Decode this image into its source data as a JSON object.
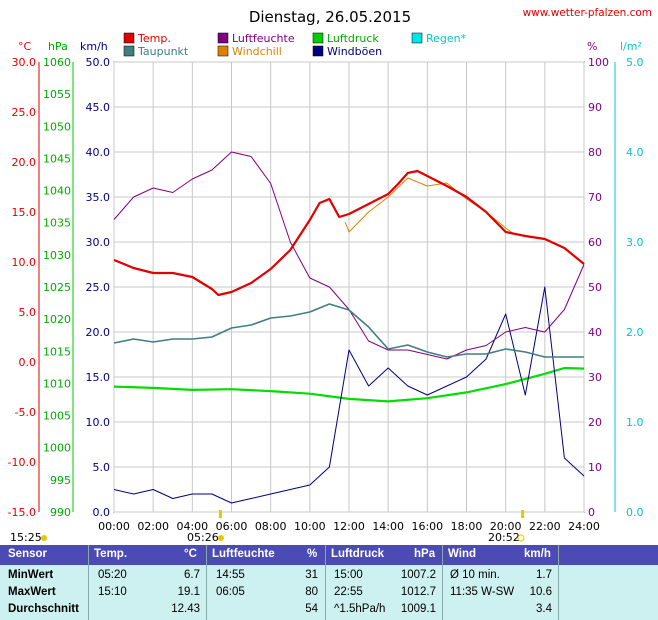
{
  "header": {
    "title": "Dienstag, 26.05.2015",
    "website": "www.wetter-pfalzen.com"
  },
  "legend": [
    {
      "label": "Temp.",
      "color": "#e00000"
    },
    {
      "label": "Luftfeuchte",
      "color": "#800080"
    },
    {
      "label": "Luftdruck",
      "color": "#00cc00"
    },
    {
      "label": "Regen*",
      "color": "#00e5e5"
    },
    {
      "label": "Taupunkt",
      "color": "#3f7f7f"
    },
    {
      "label": "Windchill",
      "color": "#e08000"
    },
    {
      "label": "Windböen",
      "color": "#00007f"
    }
  ],
  "axes": {
    "temp_unit": "°C",
    "press_unit": "hPa",
    "wind_unit": "km/h",
    "hum_unit": "%",
    "rain_unit": "l/m²",
    "temp_ticks": [
      "30.0",
      "25.0",
      "20.0",
      "15.0",
      "10.0",
      "5.0",
      "0.0",
      "-5.0",
      "-10.0",
      "-15.0"
    ],
    "press_ticks": [
      "1060",
      "1055",
      "1050",
      "1045",
      "1040",
      "1035",
      "1030",
      "1025",
      "1020",
      "1015",
      "1010",
      "1005",
      "1000",
      "995",
      "990"
    ],
    "wind_ticks": [
      "50.0",
      "45.0",
      "40.0",
      "35.0",
      "30.0",
      "25.0",
      "20.0",
      "15.0",
      "10.0",
      "5.0",
      "0.0"
    ],
    "hum_ticks": [
      "100",
      "90",
      "80",
      "70",
      "60",
      "50",
      "40",
      "30",
      "20",
      "10",
      "0"
    ],
    "rain_ticks": [
      "5.0",
      "4.0",
      "3.0",
      "2.0",
      "1.0",
      "0.0"
    ],
    "x_ticks": [
      "00:00",
      "02:00",
      "04:00",
      "06:00",
      "08:00",
      "10:00",
      "12:00",
      "14:00",
      "16:00",
      "18:00",
      "20:00",
      "22:00",
      "24:00"
    ]
  },
  "sun": {
    "sunrise": "05:26",
    "sunset": "20:52",
    "left_time": "15:25"
  },
  "chart_data": {
    "type": "line",
    "x_unit": "hours",
    "xlim": [
      0,
      24
    ],
    "series": [
      {
        "name": "Temp.",
        "axis": "°C",
        "ylim": [
          -15,
          30
        ],
        "x": [
          0,
          1,
          2,
          3,
          4,
          5,
          5.33,
          6,
          7,
          8,
          9,
          10,
          10.5,
          11,
          11.5,
          12,
          13,
          14,
          14.5,
          15,
          15.5,
          16,
          17,
          18,
          19,
          20,
          21,
          22,
          23,
          24
        ],
        "values": [
          10.2,
          9.4,
          8.9,
          8.9,
          8.5,
          7.3,
          6.7,
          7.0,
          7.9,
          9.3,
          11.2,
          14.2,
          15.9,
          16.3,
          14.5,
          14.8,
          15.8,
          16.8,
          17.8,
          18.9,
          19.1,
          18.6,
          17.6,
          16.5,
          15.0,
          13.0,
          12.6,
          12.3,
          11.4,
          9.8
        ]
      },
      {
        "name": "Luftfeuchte",
        "axis": "%",
        "ylim": [
          0,
          100
        ],
        "x": [
          0,
          1,
          2,
          3,
          4,
          5,
          6,
          7,
          8,
          9,
          10,
          11,
          12,
          13,
          14,
          15,
          16,
          17,
          18,
          19,
          20,
          21,
          22,
          23,
          24
        ],
        "values": [
          65,
          70,
          72,
          71,
          74,
          76,
          80,
          79,
          73,
          60,
          52,
          50,
          45,
          38,
          36,
          36,
          35,
          34,
          36,
          37,
          40,
          41,
          40,
          45,
          55
        ]
      },
      {
        "name": "Luftdruck",
        "axis": "hPa",
        "ylim": [
          990,
          1060
        ],
        "x": [
          0,
          2,
          4,
          6,
          8,
          10,
          12,
          14,
          16,
          18,
          20,
          22,
          23,
          24
        ],
        "values": [
          1009.5,
          1009.3,
          1009.0,
          1009.1,
          1008.8,
          1008.4,
          1007.6,
          1007.2,
          1007.7,
          1008.6,
          1009.9,
          1011.5,
          1012.4,
          1012.3
        ]
      },
      {
        "name": "Taupunkt",
        "axis": "°C",
        "ylim": [
          -15,
          30
        ],
        "x": [
          0,
          1,
          2,
          3,
          4,
          5,
          6,
          7,
          8,
          9,
          10,
          11,
          12,
          13,
          14,
          15,
          16,
          17,
          18,
          19,
          20,
          21,
          22,
          23,
          24
        ],
        "values": [
          1.9,
          2.3,
          2.0,
          2.3,
          2.3,
          2.5,
          3.4,
          3.7,
          4.4,
          4.6,
          5.0,
          5.8,
          5.2,
          3.5,
          1.3,
          1.7,
          1.0,
          0.5,
          0.8,
          0.8,
          1.3,
          1.0,
          0.5,
          0.5,
          0.5
        ]
      },
      {
        "name": "Windchill",
        "axis": "°C",
        "ylim": [
          -15,
          30
        ],
        "x": [
          11.8,
          12.0,
          12.5,
          13.0,
          14.0,
          15.0,
          16.0,
          17.0,
          18.0,
          19.0,
          20.0,
          20.5
        ],
        "values": [
          14.0,
          13.0,
          14.0,
          15.0,
          16.5,
          18.4,
          17.6,
          17.9,
          16.3,
          15.0,
          13.4,
          12.7
        ]
      },
      {
        "name": "Windböen",
        "axis": "km/h",
        "ylim": [
          0,
          50
        ],
        "x": [
          0,
          1,
          2,
          3,
          4,
          5,
          6,
          7,
          8,
          9,
          10,
          11,
          12,
          13,
          14,
          15,
          16,
          17,
          18,
          19,
          20,
          21,
          22,
          23,
          24
        ],
        "values": [
          2.5,
          2.0,
          2.5,
          1.5,
          2.0,
          2.0,
          1.0,
          1.5,
          2.0,
          2.5,
          3.0,
          5.0,
          18.0,
          14.0,
          16.0,
          14.0,
          13.0,
          14.0,
          15.0,
          17.0,
          22.0,
          13.0,
          25.0,
          6.0,
          4.0
        ]
      }
    ]
  },
  "stats": {
    "headers": {
      "sensor": "Sensor",
      "temp": "Temp.",
      "temp_unit": "°C",
      "hum": "Luftfeuchte",
      "hum_unit": "%",
      "press": "Luftdruck",
      "press_unit": "hPa",
      "wind": "Wind",
      "wind_unit": "km/h"
    },
    "rows": [
      {
        "label": "MinWert",
        "temp_time": "05:20",
        "temp": "6.7",
        "hum_time": "14:55",
        "hum": "31",
        "press_time": "15:00",
        "press": "1007.2",
        "wind_desc": "Ø 10 min.",
        "wind": "1.7"
      },
      {
        "label": "MaxWert",
        "temp_time": "15:10",
        "temp": "19.1",
        "hum_time": "06:05",
        "hum": "80",
        "press_time": "22:55",
        "press": "1012.7",
        "wind_desc": "11:35   W-SW",
        "wind": "10.6"
      },
      {
        "label": "Durchschnitt",
        "temp_time": "",
        "temp": "12.43",
        "hum_time": "",
        "hum": "54",
        "press_time": "^1.5hPa/h",
        "press": "1009.1",
        "wind_desc": "",
        "wind": "3.4"
      }
    ]
  }
}
